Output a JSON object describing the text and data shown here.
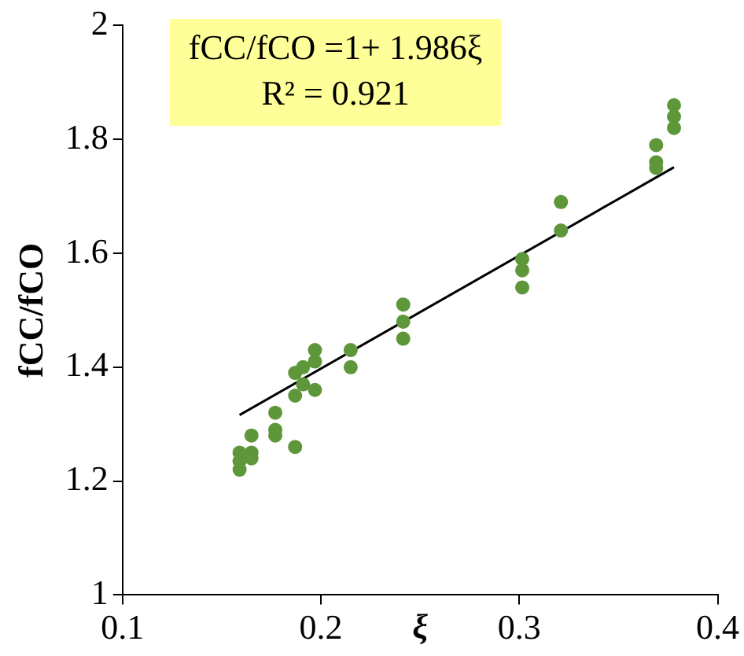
{
  "chart_data": {
    "type": "scatter",
    "xlabel": "ξ",
    "ylabel": "fCC/fCO",
    "annotations": [
      "fCC/fCO =1+ 1.986ξ",
      "R² = 0.921"
    ],
    "xlim": [
      0.1,
      0.4
    ],
    "xticks": [
      0.1,
      0.2,
      0.3,
      0.4
    ],
    "ylim": [
      1,
      2
    ],
    "yticks": [
      1,
      1.2,
      1.4,
      1.6,
      1.8,
      2
    ],
    "grid": false,
    "legend": false,
    "marker": "circle",
    "series": [
      {
        "type": "scatter",
        "color": "#5e963a",
        "x": [
          0.159,
          0.159,
          0.159,
          0.165,
          0.165,
          0.165,
          0.177,
          0.177,
          0.177,
          0.187,
          0.187,
          0.187,
          0.191,
          0.191,
          0.197,
          0.197,
          0.197,
          0.215,
          0.215,
          0.2415,
          0.2415,
          0.2415,
          0.3015,
          0.3015,
          0.3015,
          0.321,
          0.321,
          0.369,
          0.369,
          0.369,
          0.378,
          0.378,
          0.378
        ],
        "values": [
          1.25,
          1.22,
          1.235,
          1.28,
          1.25,
          1.24,
          1.32,
          1.29,
          1.28,
          1.39,
          1.35,
          1.26,
          1.4,
          1.37,
          1.43,
          1.41,
          1.36,
          1.43,
          1.4,
          1.51,
          1.48,
          1.45,
          1.59,
          1.57,
          1.54,
          1.69,
          1.64,
          1.79,
          1.76,
          1.75,
          1.86,
          1.84,
          1.82
        ]
      },
      {
        "type": "line",
        "color": "#000000",
        "x": [
          0.159,
          0.378
        ],
        "values": [
          1.316,
          1.751
        ],
        "marker": "none"
      }
    ]
  }
}
